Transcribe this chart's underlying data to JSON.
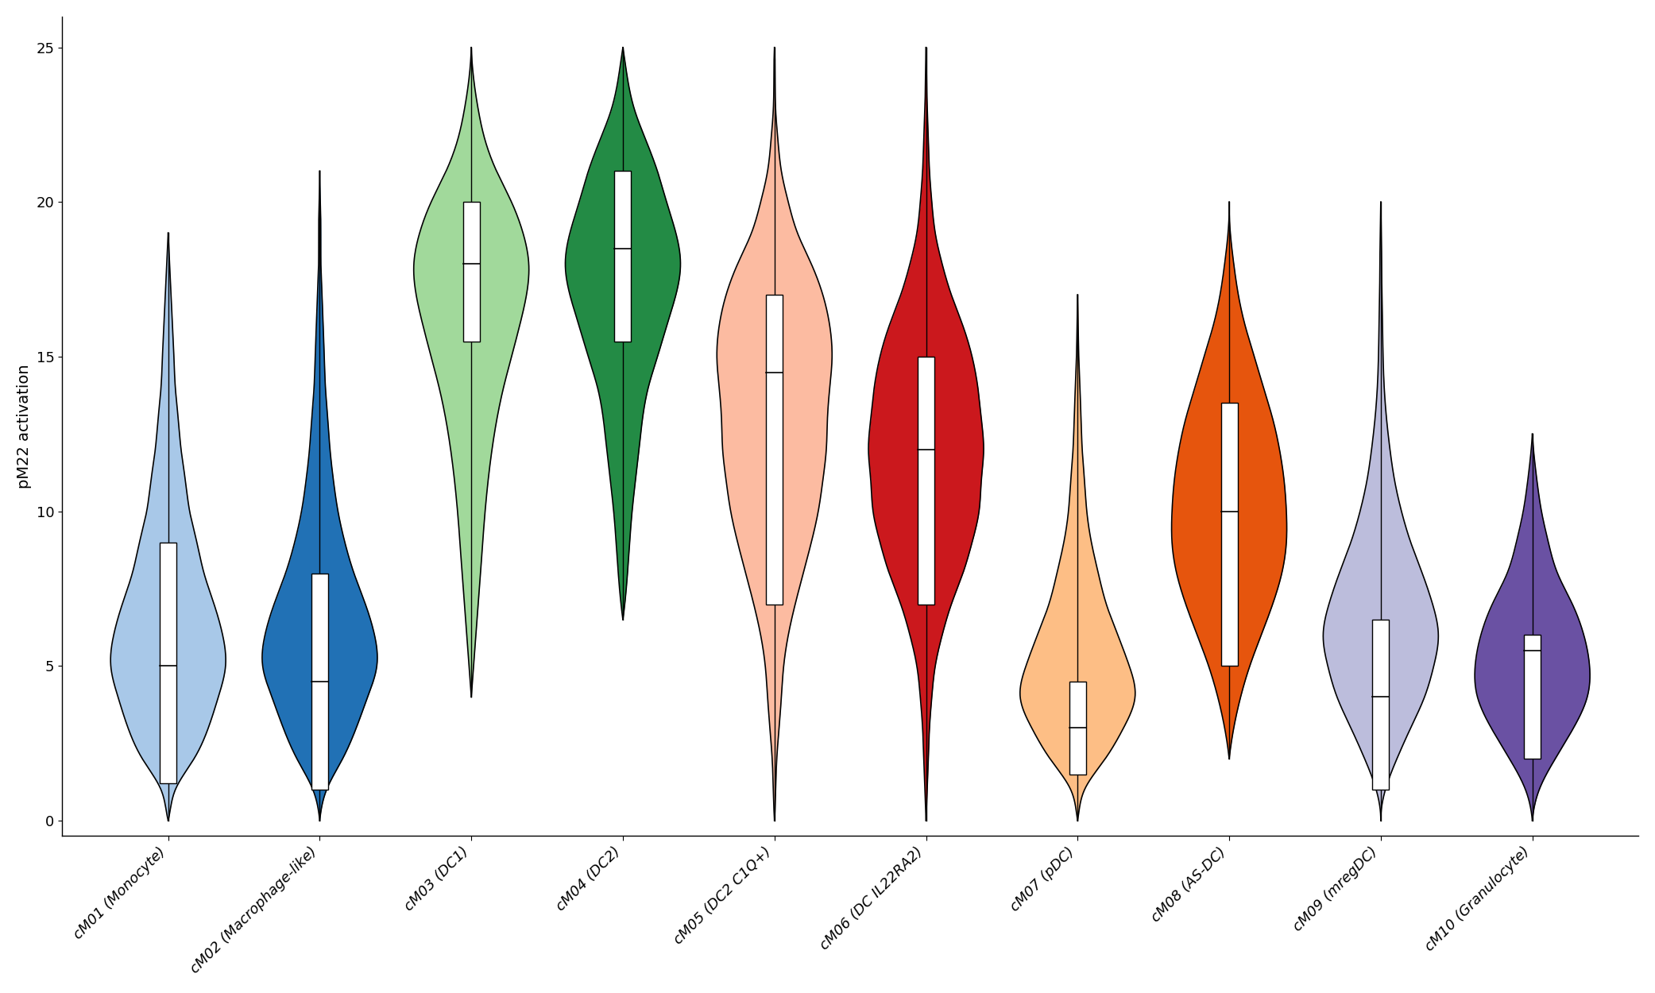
{
  "categories": [
    "cM01 (Monocyte)",
    "cM02 (Macrophage-like)",
    "cM03 (DC1)",
    "cM04 (DC2)",
    "cM05 (DC2 C1Q+)",
    "cM06 (DC IL22RA2)",
    "cM07 (pDC)",
    "cM08 (AS-DC)",
    "cM09 (mregDC)",
    "cM10 (Granulocyte)"
  ],
  "colors": [
    "#a8c8e8",
    "#2171b5",
    "#a1d99b",
    "#238b45",
    "#fcbba1",
    "#cb181d",
    "#fdbe85",
    "#e6550d",
    "#bcbddc",
    "#6a51a3"
  ],
  "violin_params": [
    {
      "median": 5.0,
      "q1": 1.2,
      "q3": 9.0,
      "whisker_low": 0.0,
      "whisker_high": 19.0,
      "kde_y": [
        0,
        0.5,
        1,
        2,
        3,
        4,
        5,
        6,
        7,
        8,
        9,
        10,
        11,
        12,
        13,
        14,
        15,
        16,
        17,
        18,
        19
      ],
      "kde_w": [
        0.0,
        0.02,
        0.05,
        0.18,
        0.28,
        0.35,
        0.4,
        0.38,
        0.32,
        0.25,
        0.2,
        0.15,
        0.12,
        0.09,
        0.07,
        0.05,
        0.04,
        0.03,
        0.02,
        0.01,
        0.0
      ]
    },
    {
      "median": 4.5,
      "q1": 1.0,
      "q3": 8.0,
      "whisker_low": 0.0,
      "whisker_high": 21.0,
      "kde_y": [
        0,
        0.5,
        1,
        2,
        3,
        4,
        5,
        6,
        7,
        8,
        9,
        10,
        11,
        12,
        13,
        14,
        15,
        16,
        17,
        18,
        19,
        20,
        21
      ],
      "kde_w": [
        0.0,
        0.02,
        0.06,
        0.2,
        0.32,
        0.42,
        0.5,
        0.48,
        0.4,
        0.3,
        0.22,
        0.16,
        0.12,
        0.09,
        0.07,
        0.05,
        0.04,
        0.03,
        0.02,
        0.01,
        0.01,
        0.005,
        0.0
      ]
    },
    {
      "median": 18.0,
      "q1": 15.5,
      "q3": 20.0,
      "whisker_low": 4.0,
      "whisker_high": 25.0,
      "kde_y": [
        4,
        6,
        8,
        10,
        12,
        14,
        15,
        16,
        17,
        18,
        19,
        20,
        21,
        22,
        23,
        24,
        25
      ],
      "kde_w": [
        0.0,
        0.04,
        0.08,
        0.12,
        0.18,
        0.28,
        0.35,
        0.42,
        0.48,
        0.5,
        0.45,
        0.35,
        0.22,
        0.12,
        0.06,
        0.02,
        0.0
      ]
    },
    {
      "median": 18.5,
      "q1": 15.5,
      "q3": 21.0,
      "whisker_low": 6.5,
      "whisker_high": 25.0,
      "kde_y": [
        6.5,
        8,
        10,
        12,
        14,
        15,
        16,
        17,
        18,
        19,
        20,
        21,
        22,
        23,
        24,
        25
      ],
      "kde_w": [
        0.0,
        0.04,
        0.08,
        0.14,
        0.22,
        0.3,
        0.38,
        0.46,
        0.5,
        0.46,
        0.38,
        0.3,
        0.2,
        0.1,
        0.04,
        0.0
      ]
    },
    {
      "median": 14.5,
      "q1": 7.0,
      "q3": 17.0,
      "whisker_low": 0.0,
      "whisker_high": 25.0,
      "kde_y": [
        0,
        1,
        2,
        3,
        4,
        5,
        6,
        7,
        8,
        9,
        10,
        11,
        12,
        13,
        14,
        15,
        16,
        17,
        18,
        19,
        20,
        21,
        22,
        23,
        24,
        25
      ],
      "kde_w": [
        0.0,
        0.01,
        0.02,
        0.04,
        0.06,
        0.08,
        0.12,
        0.18,
        0.25,
        0.32,
        0.38,
        0.42,
        0.45,
        0.46,
        0.48,
        0.5,
        0.48,
        0.42,
        0.32,
        0.2,
        0.12,
        0.06,
        0.03,
        0.01,
        0.005,
        0.0
      ]
    },
    {
      "median": 12.0,
      "q1": 7.0,
      "q3": 15.0,
      "whisker_low": 0.0,
      "whisker_high": 25.0,
      "kde_y": [
        0,
        1,
        2,
        3,
        4,
        5,
        6,
        7,
        8,
        9,
        10,
        11,
        12,
        13,
        14,
        15,
        16,
        17,
        18,
        19,
        20,
        21,
        22,
        23,
        24,
        25
      ],
      "kde_w": [
        0.0,
        0.01,
        0.02,
        0.03,
        0.05,
        0.08,
        0.14,
        0.22,
        0.32,
        0.4,
        0.46,
        0.48,
        0.5,
        0.48,
        0.45,
        0.4,
        0.32,
        0.22,
        0.14,
        0.08,
        0.05,
        0.03,
        0.02,
        0.01,
        0.005,
        0.0
      ]
    },
    {
      "median": 3.0,
      "q1": 1.5,
      "q3": 4.5,
      "whisker_low": 0.0,
      "whisker_high": 17.0,
      "kde_y": [
        0,
        0.5,
        1,
        2,
        3,
        4,
        5,
        6,
        7,
        8,
        9,
        10,
        11,
        12,
        13,
        14,
        15,
        16,
        17
      ],
      "kde_w": [
        0.0,
        0.02,
        0.06,
        0.24,
        0.4,
        0.5,
        0.45,
        0.35,
        0.25,
        0.18,
        0.12,
        0.08,
        0.06,
        0.04,
        0.03,
        0.02,
        0.01,
        0.005,
        0.0
      ]
    },
    {
      "median": 10.0,
      "q1": 5.0,
      "q3": 13.5,
      "whisker_low": 2.0,
      "whisker_high": 20.0,
      "kde_y": [
        2,
        3,
        4,
        5,
        6,
        7,
        8,
        9,
        10,
        11,
        12,
        13,
        14,
        15,
        16,
        17,
        18,
        19,
        20
      ],
      "kde_w": [
        0.0,
        0.04,
        0.1,
        0.18,
        0.28,
        0.38,
        0.46,
        0.5,
        0.5,
        0.48,
        0.44,
        0.38,
        0.3,
        0.22,
        0.14,
        0.08,
        0.04,
        0.01,
        0.0
      ]
    },
    {
      "median": 4.0,
      "q1": 1.0,
      "q3": 6.5,
      "whisker_low": 0.0,
      "whisker_high": 20.0,
      "kde_y": [
        0,
        0.5,
        1,
        2,
        3,
        4,
        5,
        6,
        7,
        8,
        9,
        10,
        11,
        12,
        13,
        14,
        15,
        16,
        17,
        18,
        19,
        20
      ],
      "kde_w": [
        0.0,
        0.01,
        0.04,
        0.14,
        0.26,
        0.38,
        0.46,
        0.5,
        0.45,
        0.36,
        0.26,
        0.18,
        0.12,
        0.08,
        0.05,
        0.03,
        0.02,
        0.015,
        0.01,
        0.008,
        0.004,
        0.0
      ]
    },
    {
      "median": 5.5,
      "q1": 2.0,
      "q3": 6.0,
      "whisker_low": 0.0,
      "whisker_high": 12.5,
      "kde_y": [
        0,
        0.5,
        1,
        2,
        3,
        4,
        5,
        6,
        7,
        8,
        9,
        10,
        11,
        12,
        12.5
      ],
      "kde_w": [
        0.0,
        0.02,
        0.06,
        0.2,
        0.36,
        0.48,
        0.5,
        0.45,
        0.35,
        0.22,
        0.14,
        0.08,
        0.04,
        0.01,
        0.0
      ]
    }
  ],
  "ylabel": "pM22 activation",
  "ylim": [
    -0.5,
    26
  ],
  "yticks": [
    0,
    5,
    10,
    15,
    20,
    25
  ],
  "figsize": [
    20.83,
    12.5
  ],
  "dpi": 100
}
